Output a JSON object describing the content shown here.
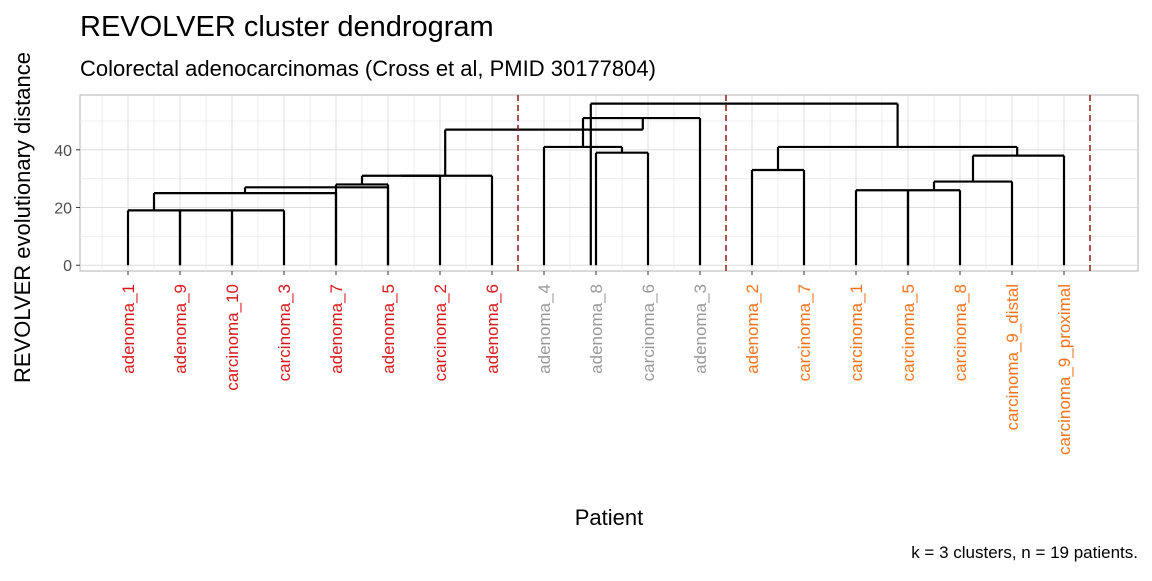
{
  "chart_data": {
    "type": "dendrogram",
    "title": "REVOLVER cluster dendrogram",
    "subtitle": "Colorectal adenocarcinomas (Cross et al, PMID 30177804)",
    "xlabel": "Patient",
    "ylabel": "REVOLVER evolutionary distance",
    "caption": "k = 3 clusters, n = 19 patients.",
    "ylim": [
      -2,
      59
    ],
    "y_ticks": [
      0,
      20,
      40
    ],
    "grid": true,
    "leaves": [
      {
        "label": "adenoma_1",
        "cluster": 1
      },
      {
        "label": "adenoma_9",
        "cluster": 1
      },
      {
        "label": "carcinoma_10",
        "cluster": 1
      },
      {
        "label": "carcinoma_3",
        "cluster": 1
      },
      {
        "label": "adenoma_7",
        "cluster": 1
      },
      {
        "label": "adenoma_5",
        "cluster": 1
      },
      {
        "label": "carcinoma_2",
        "cluster": 1
      },
      {
        "label": "adenoma_6",
        "cluster": 1
      },
      {
        "label": "adenoma_4",
        "cluster": 2
      },
      {
        "label": "adenoma_8",
        "cluster": 2
      },
      {
        "label": "carcinoma_6",
        "cluster": 2
      },
      {
        "label": "adenoma_3",
        "cluster": 2
      },
      {
        "label": "adenoma_2",
        "cluster": 3
      },
      {
        "label": "carcinoma_7",
        "cluster": 3
      },
      {
        "label": "carcinoma_1",
        "cluster": 3
      },
      {
        "label": "carcinoma_5",
        "cluster": 3
      },
      {
        "label": "carcinoma_8",
        "cluster": 3
      },
      {
        "label": "carcinoma_9_distal",
        "cluster": 3
      },
      {
        "label": "carcinoma_9_proximal",
        "cluster": 3
      }
    ],
    "cluster_colors": {
      "1": "#d7191c",
      "2": "#999999",
      "3": "#f4741e"
    },
    "cut_color": "#8b1a1a",
    "cluster_cuts_after_leaf": [
      8,
      12,
      19
    ],
    "merges": [
      {
        "left": 1,
        "right": 2,
        "height": 19
      },
      {
        "left": 2,
        "right": 3,
        "height": 19
      },
      {
        "left": 3,
        "right": 4,
        "height": 19
      },
      {
        "left": 1.5,
        "right": 5,
        "height": 25
      },
      {
        "left": 3.25,
        "right": 6,
        "height": 27
      },
      {
        "left": 5,
        "right": 6,
        "height": 28
      },
      {
        "left": 5.5,
        "right": 7,
        "height": 31
      },
      {
        "left": 6.25,
        "right": 8,
        "height": 31
      },
      {
        "left": 10,
        "right": 11,
        "height": 39
      },
      {
        "left": 9,
        "right": 10.5,
        "height": 41
      },
      {
        "left": 9.75,
        "right": 12,
        "height": 51
      },
      {
        "left": 13,
        "right": 14,
        "height": 33
      },
      {
        "left": 15,
        "right": 16,
        "height": 26
      },
      {
        "left": 16,
        "right": 17,
        "height": 26
      },
      {
        "left": 16.5,
        "right": 18,
        "height": 29
      },
      {
        "left": 17.25,
        "right": 19,
        "height": 38
      },
      {
        "left": 13.5,
        "right": 18.1,
        "height": 41
      },
      {
        "left": 7.1,
        "right": 10.9,
        "height": 47
      },
      {
        "left": 9.9,
        "right": 15.8,
        "height": 56
      }
    ]
  }
}
